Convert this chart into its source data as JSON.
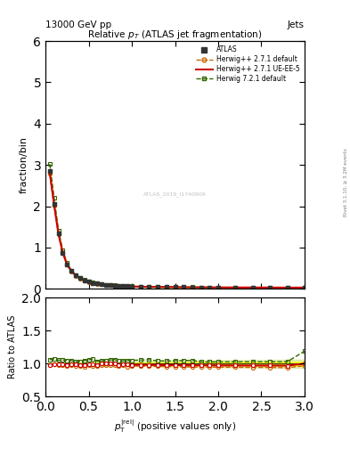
{
  "title": "Relative $p_T$ (ATLAS jet fragmentation)",
  "top_left_label": "13000 GeV pp",
  "top_right_label": "Jets",
  "ylabel_main": "fraction/bin",
  "ylabel_ratio": "Ratio to ATLAS",
  "watermark": "ATLAS_2019_I1740909",
  "xlim": [
    0,
    3
  ],
  "ylim_main": [
    0,
    6
  ],
  "ylim_ratio": [
    0.5,
    2.0
  ],
  "main_yticks": [
    0,
    1,
    2,
    3,
    4,
    5,
    6
  ],
  "ratio_yticks": [
    0.5,
    1.0,
    1.5,
    2.0
  ],
  "data_x": [
    0.05,
    0.1,
    0.15,
    0.2,
    0.25,
    0.3,
    0.35,
    0.4,
    0.45,
    0.5,
    0.55,
    0.6,
    0.65,
    0.7,
    0.75,
    0.8,
    0.85,
    0.9,
    0.95,
    1.0,
    1.1,
    1.2,
    1.3,
    1.4,
    1.5,
    1.6,
    1.7,
    1.8,
    1.9,
    2.0,
    2.2,
    2.4,
    2.6,
    2.8,
    3.0
  ],
  "atlas_y": [
    2.85,
    2.05,
    1.35,
    0.88,
    0.6,
    0.43,
    0.33,
    0.26,
    0.21,
    0.17,
    0.14,
    0.13,
    0.11,
    0.1,
    0.09,
    0.08,
    0.075,
    0.07,
    0.065,
    0.06,
    0.055,
    0.05,
    0.048,
    0.046,
    0.044,
    0.042,
    0.04,
    0.039,
    0.038,
    0.037,
    0.036,
    0.035,
    0.034,
    0.033,
    0.032
  ],
  "atlas_err": [
    0.02,
    0.015,
    0.01,
    0.008,
    0.006,
    0.005,
    0.004,
    0.003,
    0.003,
    0.002,
    0.002,
    0.002,
    0.002,
    0.002,
    0.001,
    0.001,
    0.001,
    0.001,
    0.001,
    0.001,
    0.001,
    0.001,
    0.001,
    0.001,
    0.001,
    0.001,
    0.001,
    0.001,
    0.001,
    0.001,
    0.001,
    0.001,
    0.001,
    0.001,
    0.001
  ],
  "herwig271_def_y": [
    2.78,
    2.02,
    1.32,
    0.86,
    0.58,
    0.42,
    0.32,
    0.25,
    0.2,
    0.165,
    0.135,
    0.125,
    0.108,
    0.098,
    0.088,
    0.078,
    0.072,
    0.068,
    0.062,
    0.058,
    0.053,
    0.048,
    0.046,
    0.044,
    0.042,
    0.04,
    0.038,
    0.037,
    0.036,
    0.035,
    0.034,
    0.033,
    0.032,
    0.031,
    0.031
  ],
  "herwig271_ue_y": [
    2.8,
    2.03,
    1.33,
    0.87,
    0.59,
    0.425,
    0.325,
    0.255,
    0.205,
    0.168,
    0.138,
    0.127,
    0.11,
    0.1,
    0.09,
    0.08,
    0.073,
    0.069,
    0.064,
    0.059,
    0.054,
    0.049,
    0.047,
    0.045,
    0.043,
    0.041,
    0.039,
    0.038,
    0.037,
    0.036,
    0.035,
    0.034,
    0.033,
    0.032,
    0.032
  ],
  "herwig721_def_y": [
    3.02,
    2.2,
    1.42,
    0.93,
    0.63,
    0.45,
    0.34,
    0.27,
    0.22,
    0.18,
    0.15,
    0.135,
    0.115,
    0.105,
    0.095,
    0.085,
    0.078,
    0.073,
    0.068,
    0.063,
    0.058,
    0.053,
    0.05,
    0.048,
    0.046,
    0.044,
    0.042,
    0.04,
    0.039,
    0.038,
    0.037,
    0.036,
    0.035,
    0.034,
    0.038
  ],
  "color_atlas": "#333333",
  "color_herwig271_def": "#cc6600",
  "color_herwig271_ue": "#cc0000",
  "color_herwig721_def": "#336600",
  "ratio_herwig271_def": [
    0.975,
    0.985,
    0.978,
    0.977,
    0.967,
    0.977,
    0.97,
    0.962,
    0.952,
    0.971,
    0.964,
    0.962,
    0.982,
    0.98,
    0.978,
    0.975,
    0.96,
    0.971,
    0.954,
    0.967,
    0.964,
    0.96,
    0.958,
    0.957,
    0.955,
    0.952,
    0.95,
    0.949,
    0.947,
    0.946,
    0.944,
    0.943,
    0.941,
    0.939,
    0.969
  ],
  "ratio_herwig271_ue": [
    0.982,
    0.99,
    0.985,
    0.989,
    0.983,
    0.988,
    0.985,
    0.981,
    0.976,
    0.988,
    0.986,
    0.977,
    1.0,
    1.0,
    1.0,
    1.0,
    0.973,
    0.986,
    0.985,
    0.983,
    0.982,
    0.98,
    0.979,
    0.978,
    0.977,
    0.976,
    0.975,
    0.974,
    0.974,
    0.973,
    0.972,
    0.971,
    0.971,
    0.97,
    1.0
  ],
  "ratio_herwig721_def": [
    1.06,
    1.073,
    1.052,
    1.057,
    1.05,
    1.047,
    1.03,
    1.038,
    1.048,
    1.059,
    1.071,
    1.038,
    1.045,
    1.05,
    1.056,
    1.063,
    1.04,
    1.043,
    1.046,
    1.05,
    1.055,
    1.06,
    1.042,
    1.043,
    1.045,
    1.048,
    1.05,
    1.026,
    1.026,
    1.027,
    1.028,
    1.029,
    1.029,
    1.03,
    1.188
  ]
}
